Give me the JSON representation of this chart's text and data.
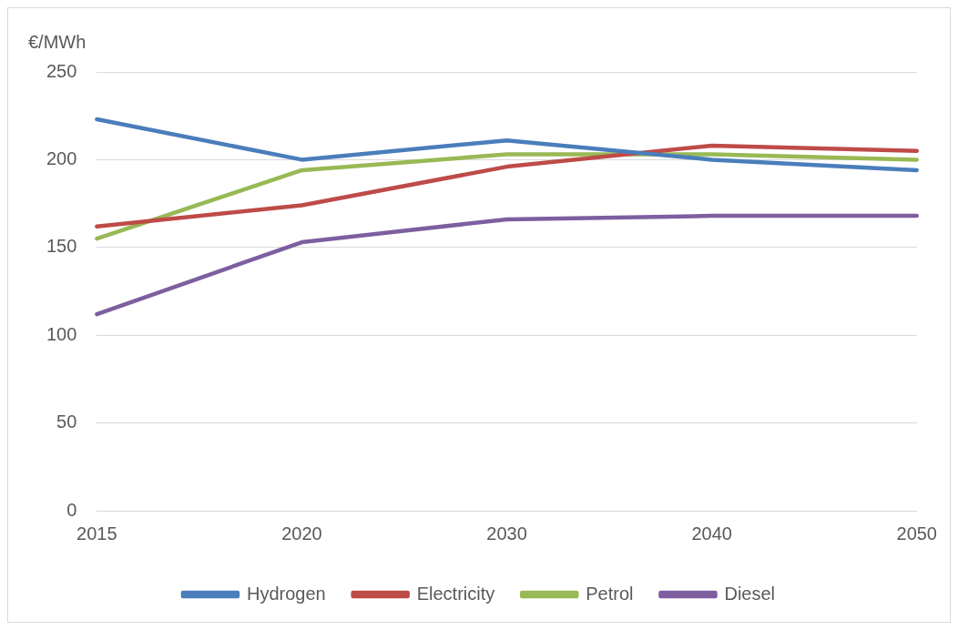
{
  "chart_data": {
    "type": "line",
    "ylabel": "€/MWh",
    "categories": [
      "2015",
      "2020",
      "2030",
      "2040",
      "2050"
    ],
    "series": [
      {
        "name": "Hydrogen",
        "color": "#4a7ebb",
        "values": [
          223,
          200,
          211,
          200,
          194
        ]
      },
      {
        "name": "Electricity",
        "color": "#be4b48",
        "values": [
          162,
          174,
          196,
          208,
          205
        ]
      },
      {
        "name": "Petrol",
        "color": "#98b954",
        "values": [
          155,
          194,
          203,
          203,
          200
        ]
      },
      {
        "name": "Diesel",
        "color": "#7d5fa0",
        "values": [
          112,
          153,
          166,
          168,
          168
        ]
      }
    ],
    "ylim": [
      0,
      250
    ],
    "yticks": [
      0,
      50,
      100,
      150,
      200,
      250
    ],
    "grid": "y",
    "legend": "bottom",
    "marker": "none",
    "line_style": "solid"
  }
}
